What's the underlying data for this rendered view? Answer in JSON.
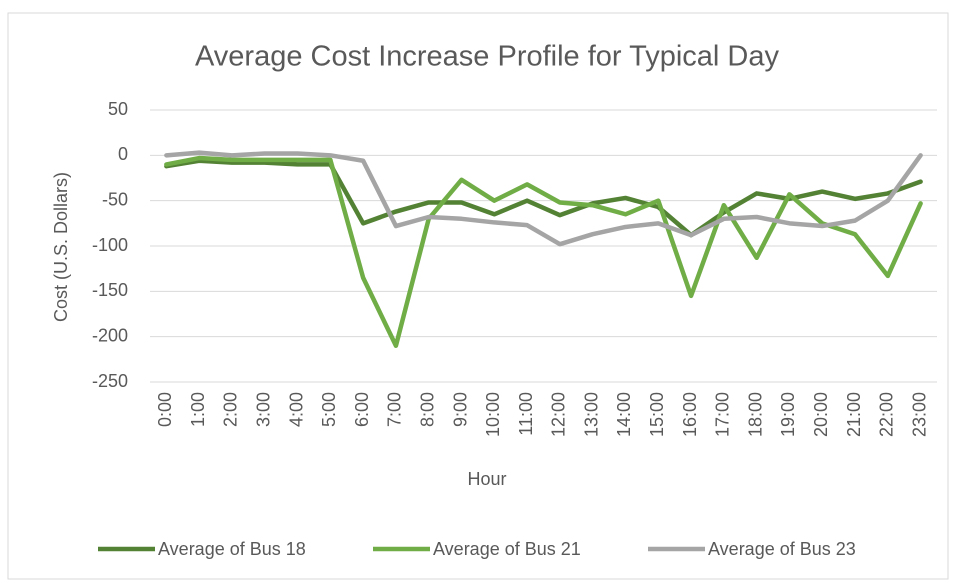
{
  "chart_data": {
    "type": "line",
    "title": "Average Cost Increase Profile for Typical Day",
    "x_label": "Hour",
    "y_label": "Cost (U.S. Dollars)",
    "categories": [
      "0:00",
      "1:00",
      "2:00",
      "3:00",
      "4:00",
      "5:00",
      "6:00",
      "7:00",
      "8:00",
      "9:00",
      "10:00",
      "11:00",
      "12:00",
      "13:00",
      "14:00",
      "15:00",
      "16:00",
      "17:00",
      "18:00",
      "19:00",
      "20:00",
      "21:00",
      "22:00",
      "23:00"
    ],
    "series": [
      {
        "name": "Average of Bus 18",
        "color": "#548235",
        "values": [
          -12,
          -6,
          -8,
          -8,
          -10,
          -10,
          -75,
          -62,
          -52,
          -52,
          -65,
          -50,
          -66,
          -53,
          -47,
          -57,
          -88,
          -63,
          -42,
          -48,
          -40,
          -48,
          -42,
          -29
        ]
      },
      {
        "name": "Average of Bus 21",
        "color": "#70ad47",
        "values": [
          -10,
          -3,
          -5,
          -5,
          -5,
          -5,
          -135,
          -210,
          -70,
          -27,
          -50,
          -32,
          -52,
          -55,
          -65,
          -50,
          -155,
          -55,
          -113,
          -43,
          -75,
          -87,
          -133,
          -53
        ]
      },
      {
        "name": "Average of Bus 23",
        "color": "#a5a5a5",
        "values": [
          0,
          3,
          0,
          2,
          2,
          0,
          -6,
          -78,
          -68,
          -70,
          -74,
          -77,
          -98,
          -87,
          -79,
          -75,
          -88,
          -70,
          -68,
          -75,
          -78,
          -72,
          -50,
          0
        ]
      }
    ],
    "ylim": [
      -250,
      50
    ],
    "yticks": [
      -250,
      -200,
      -150,
      -100,
      -50,
      0,
      50
    ],
    "grid": true,
    "legend": "bottom"
  }
}
